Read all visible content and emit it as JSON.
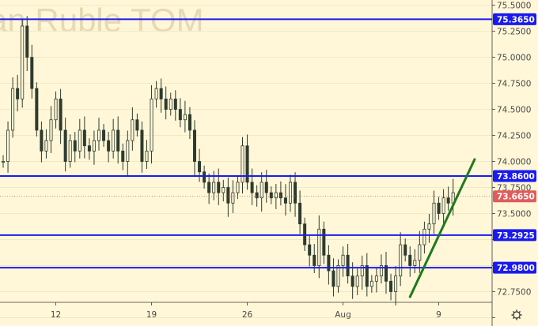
{
  "chart_data": {
    "type": "candlestick",
    "title": "an Ruble TOM",
    "colors": {
      "background": "#fff7d8",
      "candle": "#2e3b2e",
      "level_line": "#1a1af0",
      "level_label_bg": "#1a1af0",
      "trend_line": "#1e7a1e",
      "current_label_bg": "#e05c5c",
      "axis_text": "#4a4a4a",
      "grid": "#f2e8c4",
      "watermark": "#e6d9b3"
    },
    "ylim": [
      72.42,
      75.55
    ],
    "x_ticks": [
      {
        "label": "12",
        "index": 10
      },
      {
        "label": "19",
        "index": 30
      },
      {
        "label": "26",
        "index": 50
      },
      {
        "label": "Aug",
        "index": 70
      },
      {
        "label": "9",
        "index": 90
      }
    ],
    "y_ticks": [
      72.5,
      72.75,
      73.0,
      73.25,
      73.5,
      73.75,
      74.0,
      74.25,
      74.5,
      74.75,
      75.0,
      75.25,
      75.5
    ],
    "y_tick_labels": [
      "72.5000",
      "72.7500",
      "73.0000",
      "73.2500",
      "73.5000",
      "73.7500",
      "74.0000",
      "74.2500",
      "74.5000",
      "74.7500",
      "75.0000",
      "75.2500",
      "75.5000"
    ],
    "levels": [
      {
        "value": 75.365,
        "label": "75.3650"
      },
      {
        "value": 73.86,
        "label": "73.8600"
      },
      {
        "value": 73.2925,
        "label": "73.2925"
      },
      {
        "value": 72.98,
        "label": "72.9800"
      }
    ],
    "current_price": {
      "value": 73.665,
      "label": "73.6650"
    },
    "trend_line": {
      "from": {
        "index": 85,
        "value": 72.7
      },
      "to": {
        "index": 98.5,
        "value": 74.02
      }
    },
    "closes": [
      74.0,
      74.3,
      74.7,
      74.6,
      75.3,
      75.0,
      74.7,
      74.3,
      74.1,
      74.2,
      74.4,
      74.6,
      74.3,
      74.0,
      74.2,
      74.1,
      74.3,
      74.15,
      74.1,
      74.2,
      74.3,
      74.2,
      74.1,
      74.3,
      74.1,
      74.0,
      74.2,
      74.4,
      74.3,
      74.0,
      74.1,
      74.6,
      74.7,
      74.6,
      74.5,
      74.6,
      74.5,
      74.4,
      74.45,
      74.3,
      74.0,
      73.9,
      73.8,
      73.7,
      73.8,
      73.7,
      73.75,
      73.6,
      73.7,
      73.8,
      74.15,
      73.8,
      73.7,
      73.65,
      73.8,
      73.7,
      73.65,
      73.7,
      73.65,
      73.6,
      73.8,
      73.6,
      73.4,
      73.2,
      73.1,
      73.0,
      73.35,
      73.1,
      72.95,
      72.8,
      73.0,
      73.1,
      72.9,
      72.8,
      72.9,
      73.0,
      72.8,
      72.85,
      72.9,
      73.0,
      72.85,
      72.75,
      72.9,
      73.2,
      73.1,
      73.0,
      73.05,
      73.2,
      73.35,
      73.4,
      73.6,
      73.5,
      73.65,
      73.6,
      73.7
    ]
  },
  "settings_icon": "gear-icon"
}
